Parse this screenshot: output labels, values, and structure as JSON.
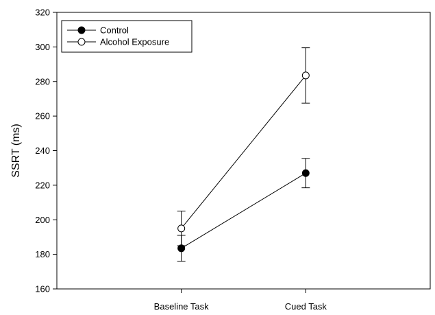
{
  "chart_data": {
    "type": "line",
    "title": "",
    "xlabel": "",
    "ylabel": "SSRT (ms)",
    "categories": [
      "Baseline Task",
      "Cued Task"
    ],
    "ylim": [
      160,
      320
    ],
    "yticks": [
      160,
      180,
      200,
      220,
      240,
      260,
      280,
      300,
      320
    ],
    "grid": false,
    "legend_position": "top-left",
    "series": [
      {
        "name": "Control",
        "marker": "filled-circle",
        "color": "#000000",
        "values": [
          183.5,
          227
        ],
        "errors": [
          7.5,
          8.5
        ]
      },
      {
        "name": "Alcohol Exposure",
        "marker": "open-circle",
        "color": "#000000",
        "values": [
          195,
          283.5
        ],
        "errors": [
          10,
          16
        ]
      }
    ]
  }
}
